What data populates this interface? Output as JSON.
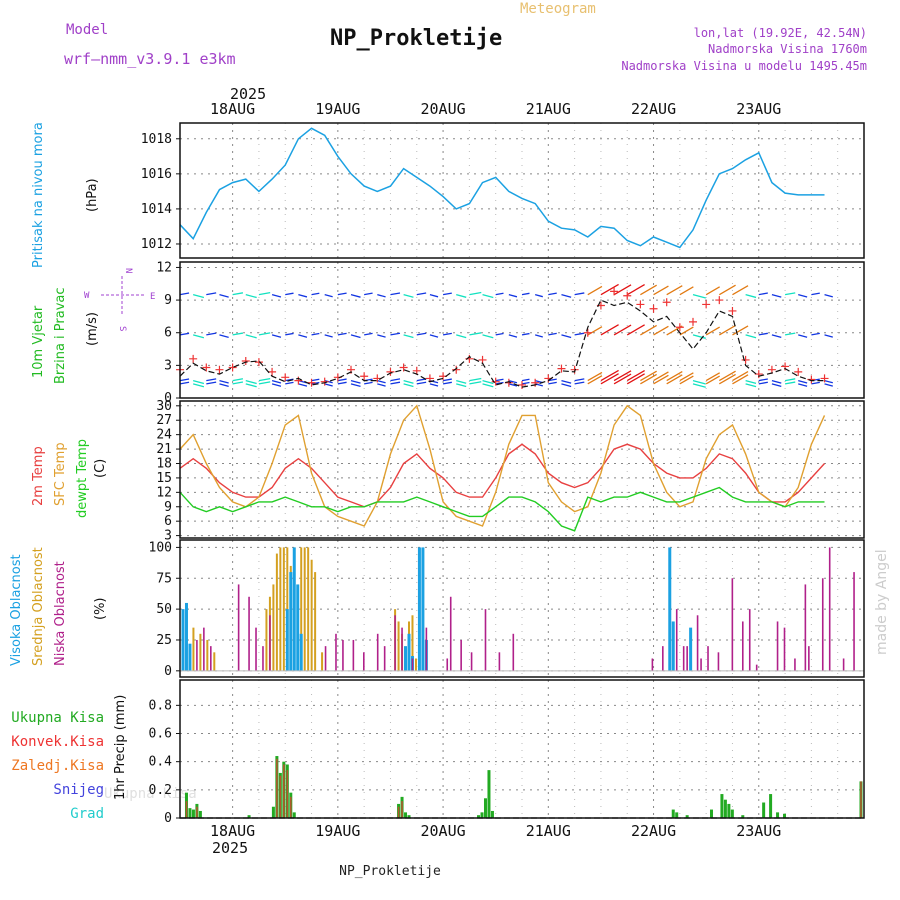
{
  "header": {
    "model_label": "Model",
    "model_name": "wrf—nmm_v3.9.1  e3km",
    "title": "NP_Prokletije",
    "subtitle": "Meteogram",
    "lonlat": "lon,lat (19.92E, 42.54N)",
    "altitude": "Nadmorska Visina 1760m",
    "model_altitude": "Nadmorska Visina u modelu 1495.45m",
    "footer_station": "NP_Prokletije",
    "credit": "made by Angel"
  },
  "colors": {
    "pressure": "#1ba1e2",
    "wind_label": "#22bb22",
    "compass": "#a040d0",
    "temp2m": "#e84040",
    "sfc_temp": "#e0a030",
    "dewpt": "#22cc22",
    "cloud_high": "#1ba1e2",
    "cloud_mid": "#d4a020",
    "cloud_low": "#b0208a",
    "precip_total": "#22aa22",
    "precip_conv": "#ee3333",
    "precip_strat": "#ee7722",
    "precip_snow": "#4444dd",
    "precip_hail": "#22cccc",
    "grid": "#888888",
    "header_purple": "#a040c8",
    "subtitle_gold": "#e8c070"
  },
  "chart_data": [
    {
      "type": "line",
      "id": "pressure",
      "ylabel_main": "Pritisak na nivou mora",
      "ylabel_unit": "(hPa)",
      "ylim": [
        1011.2,
        1018.9
      ],
      "yticks": [
        1012,
        1014,
        1016,
        1018
      ],
      "x_hours": [
        0,
        3,
        6,
        9,
        12,
        15,
        18,
        21,
        24,
        27,
        30,
        33,
        36,
        39,
        42,
        45,
        48,
        51,
        54,
        57,
        60,
        63,
        66,
        69,
        72,
        75,
        78,
        81,
        84,
        87,
        90,
        93,
        96,
        99,
        102,
        105,
        108,
        111,
        114,
        117,
        120,
        123,
        126,
        129,
        132,
        135,
        138,
        141,
        144,
        147
      ],
      "values": [
        1013.1,
        1012.3,
        1013.8,
        1015.1,
        1015.5,
        1015.7,
        1015.0,
        1015.7,
        1016.5,
        1018.0,
        1018.6,
        1018.2,
        1017.0,
        1016.0,
        1015.3,
        1015.0,
        1015.3,
        1016.3,
        1015.8,
        1015.3,
        1014.7,
        1014.0,
        1014.3,
        1015.5,
        1015.8,
        1015.0,
        1014.6,
        1014.3,
        1013.3,
        1012.9,
        1012.8,
        1012.4,
        1013.0,
        1012.9,
        1012.2,
        1011.9,
        1012.4,
        1012.1,
        1011.8,
        1012.8,
        1014.5,
        1016.0,
        1016.3,
        1016.8,
        1017.2,
        1015.5,
        1014.9,
        1014.8,
        1014.8,
        1014.8
      ]
    },
    {
      "type": "line",
      "id": "wind",
      "ylabel_main": "10m Vjetar",
      "ylabel_sub": "Brzina i Pravac",
      "ylabel_unit": "(m/s)",
      "compass": {
        "n": "N",
        "e": "E",
        "s": "S",
        "w": "W"
      },
      "ylim": [
        0,
        12.5
      ],
      "yticks": [
        0,
        3,
        6,
        9,
        12
      ],
      "x_hours": [
        0,
        3,
        6,
        9,
        12,
        15,
        18,
        21,
        24,
        27,
        30,
        33,
        36,
        39,
        42,
        45,
        48,
        51,
        54,
        57,
        60,
        63,
        66,
        69,
        72,
        75,
        78,
        81,
        84,
        87,
        90,
        93,
        96,
        99,
        102,
        105,
        108,
        111,
        114,
        117,
        120,
        123,
        126,
        129,
        132,
        135,
        138,
        141,
        144,
        147
      ],
      "speed": [
        2.0,
        3.2,
        2.5,
        2.2,
        2.8,
        3.3,
        3.4,
        2.0,
        1.5,
        1.8,
        1.2,
        1.4,
        1.8,
        2.4,
        1.6,
        1.6,
        2.3,
        2.6,
        2.2,
        1.5,
        1.8,
        2.7,
        3.8,
        3.2,
        1.2,
        1.5,
        1.0,
        1.2,
        1.6,
        2.5,
        2.4,
        6.5,
        9.0,
        8.5,
        8.8,
        8.0,
        7.0,
        7.5,
        6.0,
        4.5,
        6.0,
        8.0,
        7.5,
        3.0,
        2.0,
        2.3,
        2.7,
        2.0,
        1.6,
        1.6
      ],
      "gust": [
        2.6,
        3.6,
        2.8,
        2.6,
        2.8,
        3.4,
        3.3,
        2.4,
        1.9,
        1.6,
        1.4,
        1.5,
        1.9,
        2.6,
        2.0,
        1.8,
        2.4,
        2.8,
        2.5,
        1.8,
        2.0,
        2.6,
        3.6,
        3.5,
        1.5,
        1.4,
        1.2,
        1.4,
        1.8,
        2.7,
        2.6,
        6.0,
        8.5,
        9.8,
        9.4,
        8.6,
        8.2,
        8.8,
        6.5,
        7.0,
        8.6,
        9.0,
        8.0,
        3.5,
        2.2,
        2.6,
        2.9,
        2.4,
        1.7,
        1.8
      ],
      "arrow_rows": [
        1.3,
        5.8,
        9.5
      ],
      "arrow_bottom_row": 1.6
    },
    {
      "type": "line",
      "id": "temperature",
      "ylabel_1": "2m Temp",
      "ylabel_2": "SFC Temp",
      "ylabel_3": "dewpt Temp",
      "ylabel_unit": "(C)",
      "ylim": [
        2.5,
        31
      ],
      "yticks": [
        3,
        6,
        9,
        12,
        15,
        18,
        21,
        24,
        27,
        30
      ],
      "x_hours": [
        0,
        3,
        6,
        9,
        12,
        15,
        18,
        21,
        24,
        27,
        30,
        33,
        36,
        39,
        42,
        45,
        48,
        51,
        54,
        57,
        60,
        63,
        66,
        69,
        72,
        75,
        78,
        81,
        84,
        87,
        90,
        93,
        96,
        99,
        102,
        105,
        108,
        111,
        114,
        117,
        120,
        123,
        126,
        129,
        132,
        135,
        138,
        141,
        144,
        147
      ],
      "series": [
        {
          "name": "2m Temp",
          "values": [
            17,
            19,
            17,
            14,
            12,
            11,
            11,
            13,
            17,
            19,
            17,
            14,
            11,
            10,
            9,
            10,
            13,
            18,
            20,
            17,
            15,
            12,
            11,
            11,
            15,
            20,
            22,
            20,
            16,
            14,
            13,
            14,
            17,
            21,
            22,
            21,
            18,
            16,
            15,
            15,
            17,
            20,
            19,
            16,
            12,
            10,
            10,
            12,
            15,
            18
          ]
        },
        {
          "name": "SFC Temp",
          "values": [
            21,
            24,
            18,
            13,
            10,
            9,
            11,
            18,
            26,
            28,
            16,
            9,
            7,
            6,
            5,
            10,
            20,
            27,
            30,
            21,
            10,
            7,
            6,
            5,
            12,
            22,
            28,
            28,
            14,
            10,
            8,
            9,
            16,
            26,
            30,
            28,
            18,
            12,
            9,
            10,
            19,
            24,
            26,
            20,
            12,
            10,
            9,
            13,
            22,
            28
          ]
        },
        {
          "name": "dewpt Temp",
          "values": [
            12,
            9,
            8,
            9,
            8,
            9,
            10,
            10,
            11,
            10,
            9,
            9,
            8,
            9,
            9,
            10,
            10,
            10,
            11,
            10,
            9,
            8,
            7,
            7,
            9,
            11,
            11,
            10,
            8,
            5,
            4,
            11,
            10,
            11,
            11,
            12,
            11,
            10,
            10,
            11,
            12,
            13,
            11,
            10,
            10,
            10,
            9,
            10,
            10,
            10
          ]
        }
      ]
    },
    {
      "type": "bar",
      "id": "clouds",
      "ylabel_1": "Visoka Oblacnost",
      "ylabel_2": "Srednja Oblacnost",
      "ylabel_3": "Niska Oblacnost",
      "ylabel_unit": "(%)",
      "ylim": [
        -5,
        106
      ],
      "yticks": [
        0,
        25,
        50,
        75,
        100
      ],
      "series": [
        {
          "name": "Visoka Oblacnost",
          "points": [
            [
              0,
              50
            ],
            [
              1,
              55
            ],
            [
              2,
              22
            ],
            [
              30,
              50
            ],
            [
              31,
              80
            ],
            [
              32,
              100
            ],
            [
              33,
              70
            ],
            [
              34,
              30
            ],
            [
              64,
              20
            ],
            [
              65,
              30
            ],
            [
              66,
              12
            ],
            [
              68,
              100
            ],
            [
              69,
              100
            ],
            [
              70,
              25
            ],
            [
              140,
              100
            ],
            [
              141,
              40
            ],
            [
              146,
              35
            ]
          ]
        },
        {
          "name": "Srednja Oblacnost",
          "points": [
            [
              3,
              35
            ],
            [
              5,
              30
            ],
            [
              7,
              25
            ],
            [
              9,
              15
            ],
            [
              24,
              50
            ],
            [
              25,
              60
            ],
            [
              26,
              70
            ],
            [
              27,
              95
            ],
            [
              28,
              100
            ],
            [
              29,
              100
            ],
            [
              30,
              100
            ],
            [
              31,
              85
            ],
            [
              32,
              100
            ],
            [
              34,
              100
            ],
            [
              35,
              100
            ],
            [
              36,
              100
            ],
            [
              37,
              90
            ],
            [
              38,
              80
            ],
            [
              40,
              15
            ],
            [
              61,
              50
            ],
            [
              62,
              40
            ],
            [
              63,
              30
            ],
            [
              65,
              40
            ],
            [
              66,
              45
            ],
            [
              67,
              10
            ]
          ]
        },
        {
          "name": "Niska Oblacnost",
          "points": [
            [
              4,
              25
            ],
            [
              6,
              35
            ],
            [
              8,
              20
            ],
            [
              16,
              70
            ],
            [
              19,
              60
            ],
            [
              21,
              35
            ],
            [
              23,
              20
            ],
            [
              25,
              45
            ],
            [
              41,
              20
            ],
            [
              44,
              30
            ],
            [
              46,
              25
            ],
            [
              49,
              25
            ],
            [
              52,
              15
            ],
            [
              56,
              30
            ],
            [
              58,
              20
            ],
            [
              61,
              45
            ],
            [
              63,
              35
            ],
            [
              66,
              10
            ],
            [
              70,
              35
            ],
            [
              76,
              10
            ],
            [
              77,
              60
            ],
            [
              80,
              25
            ],
            [
              83,
              15
            ],
            [
              87,
              50
            ],
            [
              91,
              15
            ],
            [
              95,
              30
            ],
            [
              135,
              10
            ],
            [
              138,
              20
            ],
            [
              142,
              50
            ],
            [
              144,
              20
            ],
            [
              145,
              20
            ],
            [
              148,
              45
            ],
            [
              149,
              10
            ],
            [
              151,
              20
            ],
            [
              154,
              15
            ],
            [
              158,
              75
            ],
            [
              161,
              40
            ],
            [
              163,
              50
            ],
            [
              165,
              5
            ],
            [
              171,
              40
            ],
            [
              173,
              35
            ],
            [
              176,
              10
            ],
            [
              179,
              70
            ],
            [
              180,
              20
            ],
            [
              184,
              75
            ],
            [
              186,
              100
            ],
            [
              190,
              10
            ],
            [
              193,
              80
            ]
          ]
        }
      ]
    },
    {
      "type": "bar",
      "id": "precip",
      "ylabel_main": "1hr Precip (mm)",
      "legend": [
        "Ukupna Kisa",
        "Konvek.Kisa",
        "Zaledj.Kisa",
        "Snijeg",
        "Grad"
      ],
      "ylim": [
        0,
        0.98
      ],
      "yticks": [
        0,
        0.2,
        0.4,
        0.6,
        0.8
      ],
      "series": [
        {
          "name": "Ukupna Kisa",
          "points": [
            [
              1,
              0.18
            ],
            [
              2,
              0.07
            ],
            [
              3,
              0.06
            ],
            [
              4,
              0.1
            ],
            [
              5,
              0.05
            ],
            [
              19,
              0.02
            ],
            [
              26,
              0.08
            ],
            [
              27,
              0.44
            ],
            [
              28,
              0.32
            ],
            [
              29,
              0.4
            ],
            [
              30,
              0.38
            ],
            [
              31,
              0.18
            ],
            [
              32,
              0.04
            ],
            [
              62,
              0.1
            ],
            [
              63,
              0.15
            ],
            [
              64,
              0.04
            ],
            [
              65,
              0.02
            ],
            [
              85,
              0.02
            ],
            [
              86,
              0.04
            ],
            [
              87,
              0.14
            ],
            [
              88,
              0.34
            ],
            [
              89,
              0.05
            ],
            [
              141,
              0.06
            ],
            [
              142,
              0.04
            ],
            [
              145,
              0.02
            ],
            [
              152,
              0.06
            ],
            [
              155,
              0.17
            ],
            [
              156,
              0.13
            ],
            [
              157,
              0.1
            ],
            [
              158,
              0.06
            ],
            [
              161,
              0.02
            ],
            [
              167,
              0.11
            ],
            [
              169,
              0.17
            ],
            [
              171,
              0.04
            ],
            [
              173,
              0.03
            ],
            [
              195,
              0.26
            ]
          ]
        },
        {
          "name": "Konvek.Kisa",
          "points": [
            [
              1,
              0.12
            ],
            [
              4,
              0.08
            ],
            [
              27,
              0.42
            ],
            [
              28,
              0.3
            ],
            [
              29,
              0.38
            ],
            [
              30,
              0.34
            ],
            [
              31,
              0.15
            ],
            [
              62,
              0.08
            ],
            [
              63,
              0.12
            ],
            [
              195,
              0.26
            ]
          ]
        },
        {
          "name": "Zaledj.Kisa",
          "points": []
        },
        {
          "name": "Snijeg",
          "points": []
        },
        {
          "name": "Grad",
          "points": []
        }
      ]
    }
  ],
  "x_axis": {
    "day_labels": [
      "18AUG",
      "19AUG",
      "20AUG",
      "21AUG",
      "22AUG",
      "23AUG"
    ],
    "year": "2025",
    "hours_start_offset": -12,
    "hours_span": 156
  }
}
